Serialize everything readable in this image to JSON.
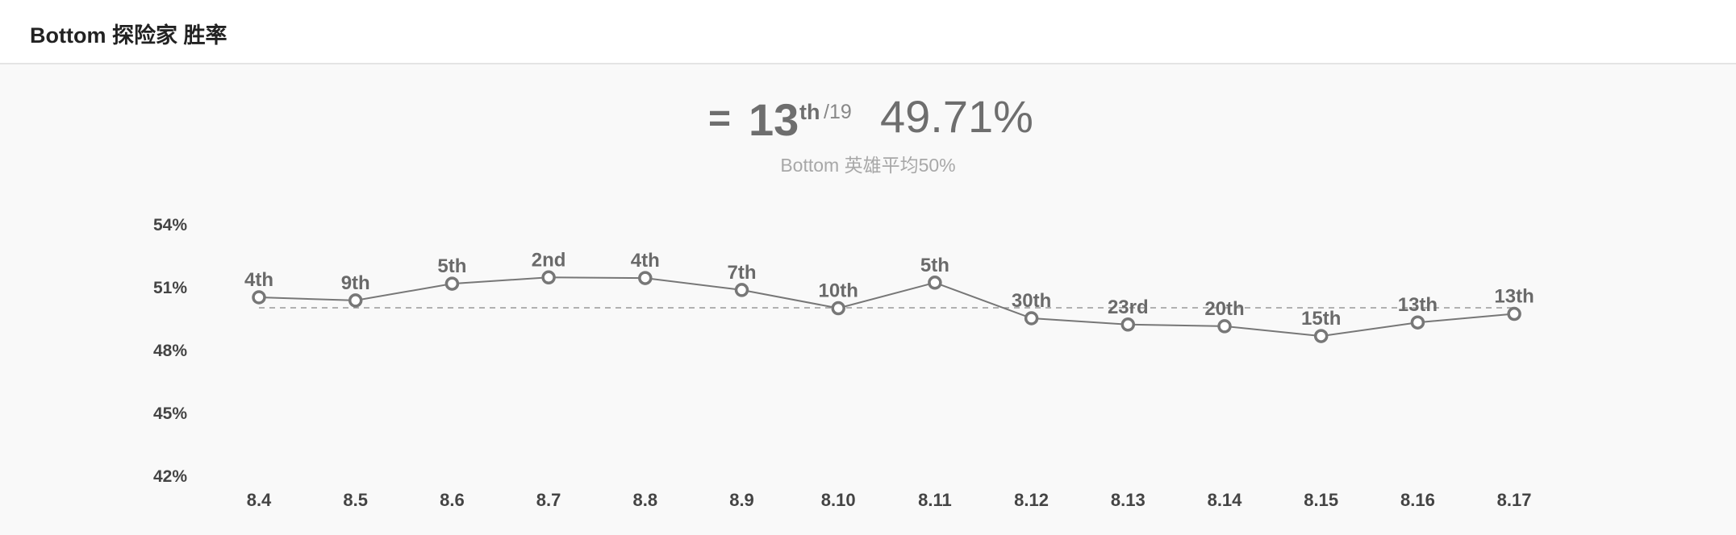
{
  "header": {
    "title": "Bottom 探险家 胜率"
  },
  "summary": {
    "trend_symbol": "=",
    "rank": "13",
    "rank_suffix": "th",
    "rank_total": "/19",
    "win_rate": "49.71%",
    "subtitle": "Bottom 英雄平均50%"
  },
  "chart_data": {
    "type": "line",
    "x": [
      "8.4",
      "8.5",
      "8.6",
      "8.7",
      "8.8",
      "8.9",
      "8.10",
      "8.11",
      "8.12",
      "8.13",
      "8.14",
      "8.15",
      "8.16",
      "8.17"
    ],
    "series": [
      {
        "values": [
          50.5,
          50.35,
          51.15,
          51.45,
          51.42,
          50.85,
          49.98,
          51.2,
          49.5,
          49.2,
          49.12,
          48.65,
          49.3,
          49.71
        ],
        "point_labels": [
          "4th",
          "9th",
          "5th",
          "2nd",
          "4th",
          "7th",
          "10th",
          "5th",
          "30th",
          "23rd",
          "20th",
          "15th",
          "13th",
          "13th"
        ],
        "color": "#777777"
      }
    ],
    "yticks": [
      "54%",
      "51%",
      "48%",
      "45%",
      "42%"
    ],
    "ytick_values": [
      54,
      51,
      48,
      45,
      42
    ],
    "ylim": [
      42,
      54
    ],
    "reference_line": {
      "value": 50,
      "style": "dashed",
      "color": "#999999"
    },
    "title": "",
    "xlabel": "",
    "ylabel": "",
    "grid": false,
    "legend": "none"
  }
}
